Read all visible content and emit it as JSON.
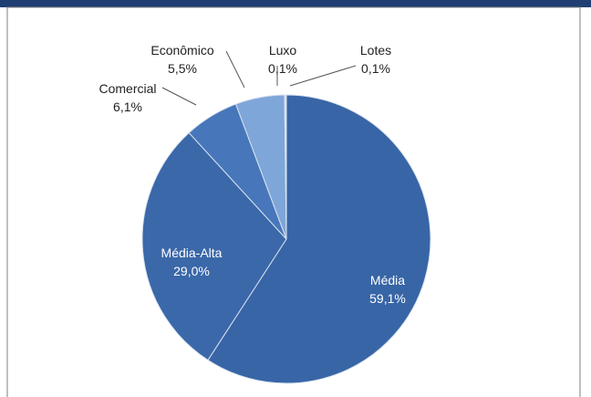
{
  "chart_data": {
    "type": "pie",
    "categories": [
      "Média",
      "Média-Alta",
      "Comercial",
      "Econômico",
      "Luxo",
      "Lotes"
    ],
    "values": [
      59.1,
      29.0,
      6.1,
      5.5,
      0.1,
      0.1
    ],
    "value_labels": [
      "59,1%",
      "29,0%",
      "6,1%",
      "5,5%",
      "0,1%",
      "0,1%"
    ],
    "colors": [
      "#3865a6",
      "#3b68a9",
      "#4777ba",
      "#7fa6d9",
      "#a9c4e8",
      "#c3d6ef"
    ]
  }
}
